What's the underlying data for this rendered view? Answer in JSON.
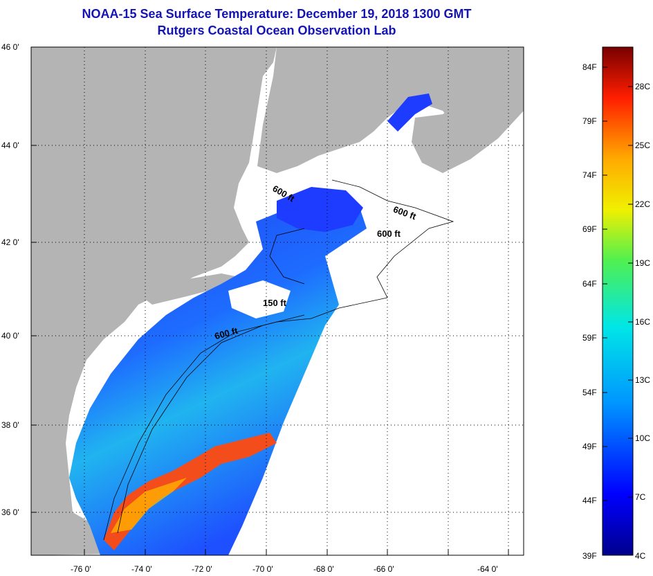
{
  "title": "NOAA-15 Sea Surface Temperature:  December 19, 2018 1300 GMT",
  "subtitle": "Rutgers Coastal Ocean Observation Lab",
  "lat_ticks": [
    "46 0'",
    "44 0'",
    "42 0'",
    "40 0'",
    "38 0'",
    "36 0'"
  ],
  "lon_ticks": [
    "-76 0'",
    "-74 0'",
    "-72 0'",
    "-70 0'",
    "-68 0'",
    "-66 0'",
    "-64 0'"
  ],
  "contour_labels": [
    "600 ft",
    "600 ft",
    "600 ft",
    "150 ft",
    "600 ft"
  ],
  "colorbar": {
    "fahrenheit": [
      "84F",
      "79F",
      "74F",
      "69F",
      "64F",
      "59F",
      "54F",
      "49F",
      "44F",
      "39F"
    ],
    "celsius": [
      "28C",
      "25C",
      "22C",
      "19C",
      "16C",
      "13C",
      "10C",
      "7C",
      "4C"
    ]
  },
  "colors": {
    "land": "#b4b4b4",
    "title": "#1414b4",
    "cold": "#1e3cff",
    "warm": "#ff3c00"
  }
}
